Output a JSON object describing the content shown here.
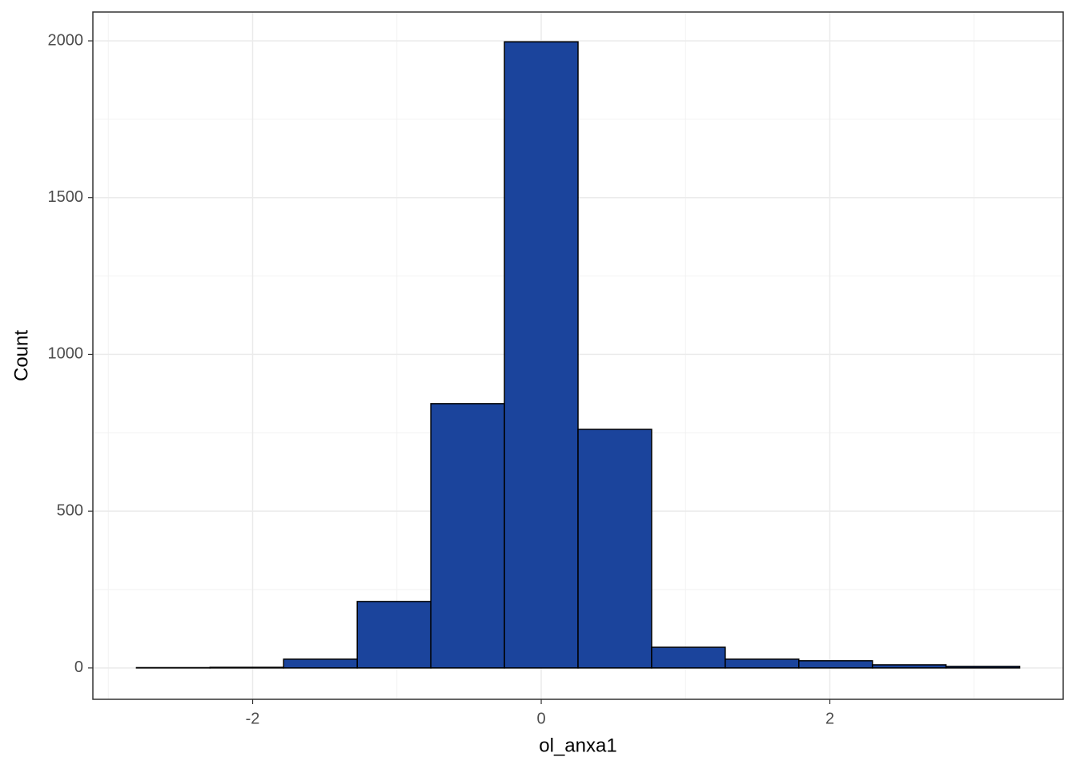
{
  "chart_data": {
    "type": "histogram",
    "x_label": "ol_anxa1",
    "y_label": "Count",
    "bins": [
      -2.805,
      -2.295,
      -1.785,
      -1.275,
      -0.765,
      -0.255,
      0.255,
      0.765,
      1.275,
      1.785,
      2.295,
      2.805,
      3.315
    ],
    "values": [
      1,
      2,
      28,
      212,
      843,
      1997,
      761,
      66,
      28,
      23,
      10,
      5
    ],
    "color": "#1b449c",
    "xlim": [
      -3.107,
      3.617
    ],
    "ylim": [
      -100,
      2092
    ],
    "xticks": [
      -2,
      0,
      2
    ],
    "yticks": [
      0,
      500,
      1000,
      1500,
      2000
    ],
    "x_minor_grid": [
      -3,
      -1,
      1,
      3
    ],
    "y_minor_grid": [
      250,
      750,
      1250,
      1750
    ],
    "grid": true
  }
}
